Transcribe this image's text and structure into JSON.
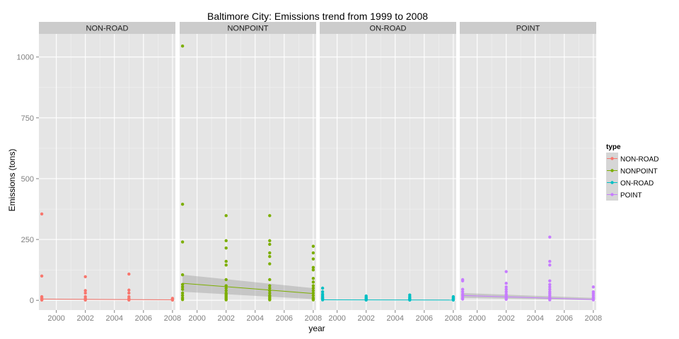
{
  "chart_data": {
    "type": "scatter",
    "title": "Baltimore City: Emissions trend from 1999 to 2008",
    "xlabel": "year",
    "ylabel": "Emissions (tons)",
    "xlim": [
      1998.8,
      2008.2
    ],
    "ylim": [
      -40,
      1095
    ],
    "x_ticks": [
      2000,
      2002,
      2004,
      2006,
      2008
    ],
    "y_ticks": [
      0,
      250,
      500,
      750,
      1000
    ],
    "grid": true,
    "smoother": "linear fit with confidence band",
    "legend": {
      "title": "type",
      "placement": "right",
      "entries": [
        "NON-ROAD",
        "NONPOINT",
        "ON-ROAD",
        "POINT"
      ]
    },
    "colors": {
      "NON-ROAD": "#F8766D",
      "NONPOINT": "#7CAE00",
      "ON-ROAD": "#00BFC4",
      "POINT": "#C77CFF",
      "panel_bg": "#E5E5E5",
      "strip_bg": "#CCCCCC",
      "band": "#999999"
    },
    "panels": [
      {
        "name": "NON-ROAD",
        "points": [
          {
            "year": 1999,
            "values": [
              355,
              100,
              15,
              10,
              6,
              3,
              1
            ]
          },
          {
            "year": 2002,
            "values": [
              97,
              40,
              30,
              15,
              8,
              4,
              1
            ]
          },
          {
            "year": 2005,
            "values": [
              108,
              42,
              30,
              15,
              8,
              4,
              1
            ]
          },
          {
            "year": 2008,
            "values": [
              8,
              5,
              3,
              2,
              1
            ]
          }
        ],
        "fit": {
          "start": [
            1999,
            5
          ],
          "end": [
            2008,
            2
          ]
        },
        "band": {
          "start": [
            3,
            7
          ],
          "end": [
            0,
            4
          ]
        }
      },
      {
        "name": "NONPOINT",
        "points": [
          {
            "year": 1999,
            "values": [
              1045,
              395,
              240,
              105,
              65,
              55,
              45,
              30,
              20,
              10,
              3
            ]
          },
          {
            "year": 2002,
            "values": [
              348,
              245,
              215,
              160,
              145,
              85,
              60,
              50,
              40,
              30,
              25,
              20,
              15,
              10,
              5,
              2
            ]
          },
          {
            "year": 2005,
            "values": [
              348,
              245,
              230,
              195,
              180,
              150,
              85,
              60,
              50,
              40,
              30,
              20,
              15,
              10,
              5,
              2
            ]
          },
          {
            "year": 2008,
            "values": [
              222,
              195,
              170,
              135,
              125,
              90,
              75,
              60,
              50,
              40,
              30,
              20,
              10,
              5,
              2
            ]
          }
        ],
        "fit": {
          "start": [
            1999,
            70
          ],
          "end": [
            2008,
            28
          ]
        },
        "band": {
          "start": [
            35,
            105
          ],
          "end": [
            5,
            50
          ]
        }
      },
      {
        "name": "ON-ROAD",
        "points": [
          {
            "year": 1999,
            "values": [
              50,
              35,
              25,
              18,
              12,
              8,
              5,
              2
            ]
          },
          {
            "year": 2002,
            "values": [
              18,
              12,
              8,
              5,
              3,
              1
            ]
          },
          {
            "year": 2005,
            "values": [
              22,
              15,
              10,
              6,
              3,
              1
            ]
          },
          {
            "year": 2008,
            "values": [
              15,
              10,
              6,
              3,
              1
            ]
          }
        ],
        "fit": {
          "start": [
            1999,
            2
          ],
          "end": [
            2008,
            1
          ]
        },
        "band": {
          "start": [
            0,
            4
          ],
          "end": [
            0,
            3
          ]
        }
      },
      {
        "name": "POINT",
        "points": [
          {
            "year": 1999,
            "values": [
              85,
              80,
              45,
              35,
              25,
              18,
              10,
              5
            ]
          },
          {
            "year": 2002,
            "values": [
              118,
              70,
              55,
              45,
              35,
              25,
              18,
              12,
              8,
              4
            ]
          },
          {
            "year": 2005,
            "values": [
              260,
              160,
              145,
              80,
              65,
              55,
              45,
              35,
              28,
              20,
              12,
              6,
              2
            ]
          },
          {
            "year": 2008,
            "values": [
              55,
              35,
              28,
              20,
              12,
              6,
              2
            ]
          }
        ],
        "fit": {
          "start": [
            1999,
            20
          ],
          "end": [
            2008,
            3
          ]
        },
        "band": {
          "start": [
            10,
            30
          ],
          "end": [
            0,
            10
          ]
        }
      }
    ]
  }
}
